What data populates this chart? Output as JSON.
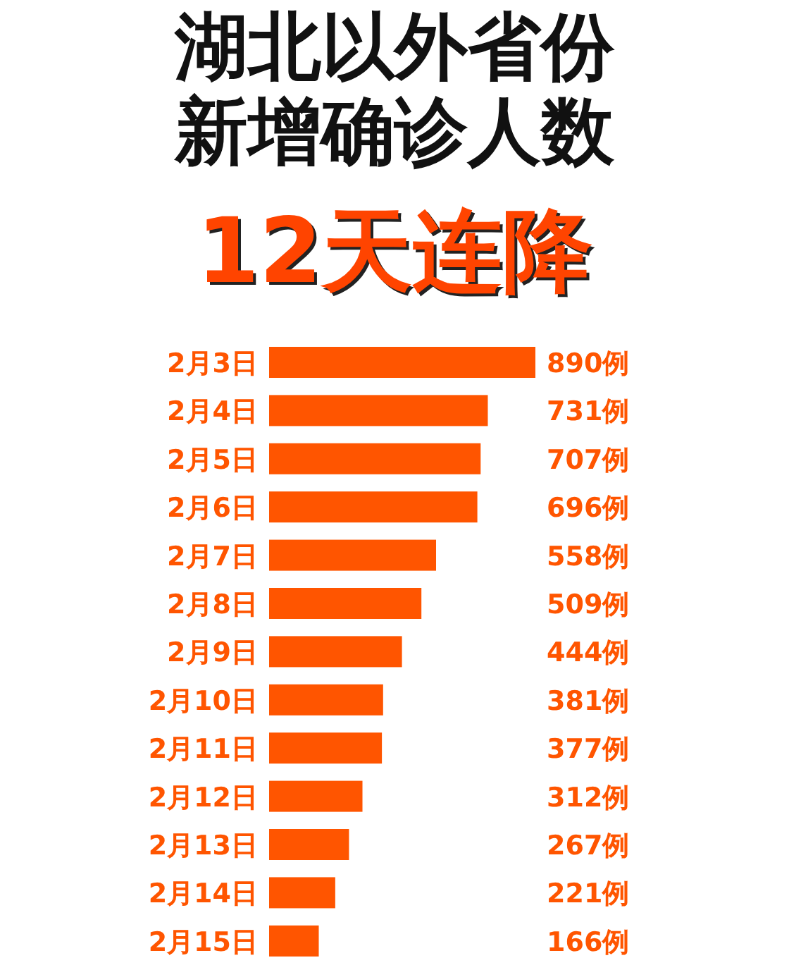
{
  "chart_data": {
    "type": "bar",
    "orientation": "horizontal",
    "title": "湖北以外省份新增确诊人数",
    "subtitle": "12天连降",
    "categories": [
      "2月3日",
      "2月4日",
      "2月5日",
      "2月6日",
      "2月7日",
      "2月8日",
      "2月9日",
      "2月10日",
      "2月11日",
      "2月12日",
      "2月13日",
      "2月14日",
      "2月15日"
    ],
    "values": [
      890,
      731,
      707,
      696,
      558,
      509,
      444,
      381,
      377,
      312,
      267,
      221,
      166
    ],
    "value_labels": [
      "890例",
      "731例",
      "707例",
      "696例",
      "558例",
      "509例",
      "444例",
      "381例",
      "377例",
      "312例",
      "267例",
      "221例",
      "166例"
    ],
    "color": "#ff5500"
  }
}
